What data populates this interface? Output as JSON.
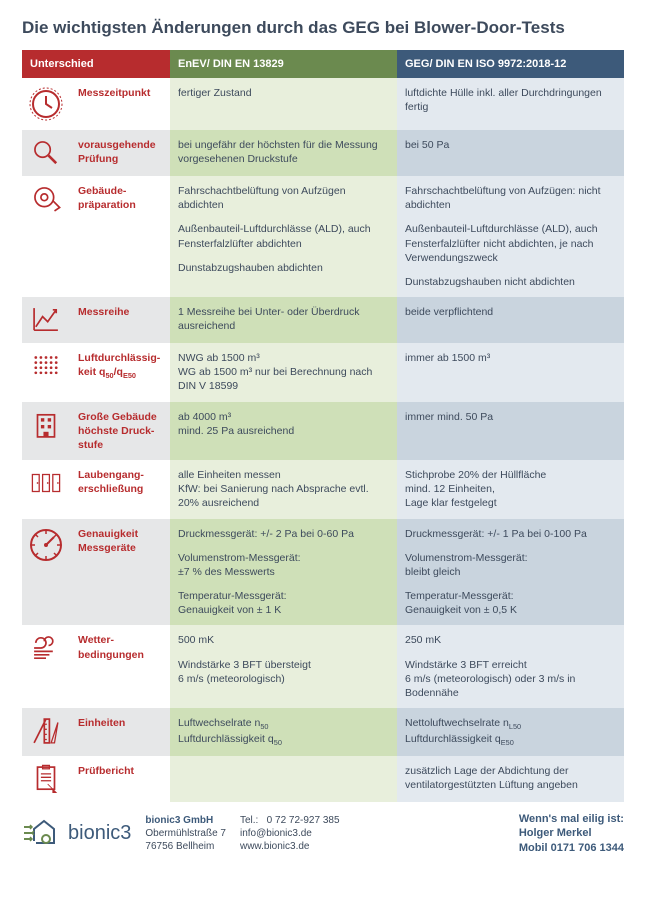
{
  "title": "Die wichtigsten Änderungen durch das GEG bei Blower-Door-Tests",
  "colors": {
    "red": "#b72c2e",
    "green_dark": "#6b8a4f",
    "blue_dark": "#3d5a7a",
    "text": "#3d4a5c",
    "light_green": "#e8efdc",
    "dark_green": "#cfe0b8",
    "light_blue": "#e3e9ef",
    "dark_blue": "#c9d4de",
    "light_grey": "#ffffff",
    "dark_grey": "#e6e7e8"
  },
  "header": {
    "c0": "Unterschied",
    "c2": "EnEV/ DIN EN 13829",
    "c3": "GEG/ DIN EN ISO 9972:2018-12"
  },
  "rows": [
    {
      "icon": "clock-icon",
      "label": "Messzeitpunkt",
      "enev": [
        "fertiger Zustand"
      ],
      "geg": [
        "luftdichte Hülle inkl. aller Durchdringungen fertig"
      ]
    },
    {
      "icon": "magnifier-icon",
      "label": "vorausgehende Prüfung",
      "enev": [
        "bei ungefähr der höchsten für die Messung vorgesehenen Druckstufe"
      ],
      "geg": [
        "bei 50 Pa"
      ]
    },
    {
      "icon": "tape-icon",
      "label": "Gebäude-\npräparation",
      "enev": [
        "Fahrschachtbelüftung von Aufzügen abdichten",
        "Außenbauteil-Luftdurchlässe (ALD), auch Fensterfalzlüfter abdichten",
        "Dunstabzugshauben abdichten"
      ],
      "geg": [
        "Fahrschachtbelüftung von Aufzügen: nicht abdichten",
        "Außenbauteil-Luftdurchlässe (ALD), auch Fensterfalzlüfter nicht abdichten, je nach Verwendungszweck",
        "Dunstabzugshauben nicht abdichten"
      ]
    },
    {
      "icon": "chart-icon",
      "label": "Messreihe",
      "enev": [
        "1 Messreihe bei Unter- oder Überdruck ausreichend"
      ],
      "geg": [
        "beide verpflichtend"
      ]
    },
    {
      "icon": "grid-icon",
      "label_html": "Luftdurchlässig-<br>keit q<sub>50</sub>/q<sub>E50</sub>",
      "enev": [
        "NWG ab 1500 m³\nWG ab 1500 m³ nur bei Berechnung nach DIN V 18599"
      ],
      "geg": [
        "immer ab 1500 m³"
      ]
    },
    {
      "icon": "building-icon",
      "label": "Große Gebäude höchste Druck-\nstufe",
      "enev": [
        "ab 4000 m³\nmind. 25 Pa ausreichend"
      ],
      "geg": [
        "immer mind. 50 Pa"
      ]
    },
    {
      "icon": "doors-icon",
      "label": "Laubengang-\nerschließung",
      "enev": [
        "alle Einheiten messen\nKfW: bei Sanierung nach Absprache evtl. 20% ausreichend"
      ],
      "geg": [
        "Stichprobe 20% der Hüllfläche\nmind. 12 Einheiten,\nLage klar festgelegt"
      ]
    },
    {
      "icon": "gauge-icon",
      "label": "Genauigkeit Messgeräte",
      "enev": [
        "Druckmessgerät:  +/- 2 Pa bei 0-60 Pa",
        "Volumenstrom-Messgerät:\n±7 % des Messwerts",
        "Temperatur-Messgerät:\nGenauigkeit von ± 1 K"
      ],
      "geg": [
        "Druckmessgerät: +/- 1 Pa bei 0-100 Pa",
        "Volumenstrom-Messgerät:\nbleibt gleich",
        "Temperatur-Messgerät:\nGenauigkeit von ± 0,5 K"
      ]
    },
    {
      "icon": "wind-icon",
      "label": "Wetter-\nbedingungen",
      "enev": [
        "500 mK",
        "Windstärke 3 BFT übersteigt\n6 m/s (meteorologisch)"
      ],
      "geg": [
        "250 mK",
        "Windstärke 3 BFT erreicht\n6 m/s (meteorologisch) oder 3 m/s in Bodennähe"
      ]
    },
    {
      "icon": "ruler-icon",
      "label": "Einheiten",
      "enev_html": [
        "Luftwechselrate  n<sub>50</sub><br>Luftdurchlässigkeit  q<sub>50</sub>"
      ],
      "geg_html": [
        "Nettoluftwechselrate n<sub>L50</sub><br>Luftdurchlässigkeit q<sub>E50</sub>"
      ]
    },
    {
      "icon": "report-icon",
      "label": "Prüfbericht",
      "enev": [
        ""
      ],
      "geg": [
        "zusätzlich Lage der Abdichtung der ventilatorgestützten Lüftung angeben"
      ]
    }
  ],
  "footer": {
    "company": "bionic3",
    "name": "bionic3 GmbH",
    "street": "Obermühlstraße 7",
    "city": "76756 Bellheim",
    "tel_label": "Tel.:",
    "tel": "0 72 72-927 385",
    "email": "info@bionic3.de",
    "web": "www.bionic3.de",
    "tag1": "Wenn's mal eilig ist:",
    "tag2": "Holger Merkel",
    "tag3": "Mobil 0171 706 1344"
  }
}
